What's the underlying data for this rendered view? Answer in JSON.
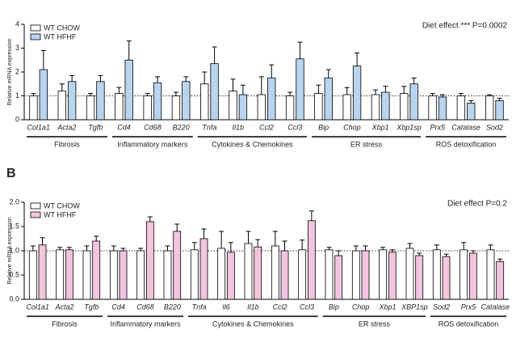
{
  "chart_data": [
    {
      "type": "bar",
      "y_label": "Relative mRNA expression",
      "annotation": "Diet effect *** P=0.0002",
      "categories": [
        "Col1a1",
        "Acta2",
        "Tgfb",
        "Cd4",
        "Cd68",
        "B220",
        "Tnfa",
        "Il1b",
        "Ccl2",
        "Ccl3",
        "Bip",
        "Chop",
        "Xbp1",
        "Xbp1sp",
        "Prx5",
        "Catalase",
        "Sod2"
      ],
      "series": [
        {
          "name": "WT CHOW",
          "color": "#ffffff",
          "values": [
            1.0,
            1.2,
            1.0,
            1.1,
            1.0,
            1.0,
            1.5,
            1.2,
            1.05,
            1.0,
            1.1,
            1.05,
            1.05,
            1.1,
            1.0,
            1.0,
            1.0
          ],
          "errors": [
            0.1,
            0.3,
            0.1,
            0.25,
            0.1,
            0.15,
            0.5,
            0.5,
            0.75,
            0.15,
            0.35,
            0.3,
            0.2,
            0.3,
            0.1,
            0.1,
            0.05
          ]
        },
        {
          "name": "WT HFHF",
          "color": "#b9d4ef",
          "values": [
            2.1,
            1.6,
            1.6,
            2.5,
            1.55,
            1.6,
            2.35,
            1.05,
            1.75,
            2.55,
            1.75,
            2.25,
            1.15,
            1.5,
            0.95,
            0.7,
            0.8
          ],
          "errors": [
            0.8,
            0.25,
            0.25,
            0.8,
            0.25,
            0.2,
            0.7,
            0.4,
            0.55,
            0.7,
            0.35,
            0.55,
            0.25,
            0.25,
            0.1,
            0.1,
            0.1
          ]
        }
      ],
      "groups": [
        "Fibrosis",
        "Inflammatory markers",
        "Cytokines & Chemokines",
        "ER stress",
        "ROS detoxification"
      ],
      "ylim": [
        0,
        4
      ],
      "yticks": [
        0,
        1,
        2,
        3,
        4
      ],
      "reference_line": 1
    },
    {
      "type": "bar",
      "panel_label": "B",
      "y_label": "Relative mRNA expression",
      "annotation": "Diet effect P=0.2",
      "categories": [
        "Col1a1",
        "Acta2",
        "Tgfb",
        "Cd4",
        "Cd68",
        "B220",
        "Tnfa",
        "Il6",
        "Il1b",
        "Ccl2",
        "Ccl3",
        "Bip",
        "Chop",
        "Xbp1",
        "XBP1sp",
        "Sod2",
        "Prx5",
        "Catalase"
      ],
      "series": [
        {
          "name": "WT CHOW",
          "color": "#ffffff",
          "values": [
            1.0,
            1.02,
            1.0,
            1.0,
            1.0,
            1.0,
            1.02,
            1.05,
            1.15,
            1.1,
            1.02,
            1.02,
            1.0,
            1.02,
            1.05,
            1.02,
            1.02,
            1.02
          ],
          "errors": [
            0.1,
            0.05,
            0.1,
            0.1,
            0.05,
            0.1,
            0.15,
            0.35,
            0.25,
            0.3,
            0.2,
            0.05,
            0.1,
            0.05,
            0.1,
            0.1,
            0.15,
            0.1
          ]
        },
        {
          "name": "WT HFHF",
          "color": "#f3c4de",
          "values": [
            1.12,
            1.02,
            1.2,
            1.0,
            1.6,
            1.4,
            1.25,
            0.97,
            1.08,
            1.0,
            1.62,
            0.9,
            1.0,
            0.97,
            0.9,
            0.88,
            0.95,
            0.78
          ],
          "errors": [
            0.15,
            0.05,
            0.1,
            0.05,
            0.1,
            0.15,
            0.2,
            0.2,
            0.15,
            0.2,
            0.2,
            0.1,
            0.1,
            0.05,
            0.05,
            0.05,
            0.05,
            0.05
          ]
        }
      ],
      "groups": [
        "Fibrosis",
        "Inflammatory markers",
        "Cytokines & Chemokines",
        "ER stress",
        "ROS detoxification"
      ],
      "ylim": [
        0,
        2
      ],
      "yticks": [
        {
          "value": 0,
          "label": "0.0"
        },
        {
          "value": 0.5,
          "label": "0.5"
        },
        {
          "value": 1,
          "label": "1.0"
        },
        {
          "value": 1.5,
          "label": "1.5"
        },
        {
          "value": 2,
          "label": "2.0"
        }
      ],
      "reference_line": 1
    }
  ]
}
